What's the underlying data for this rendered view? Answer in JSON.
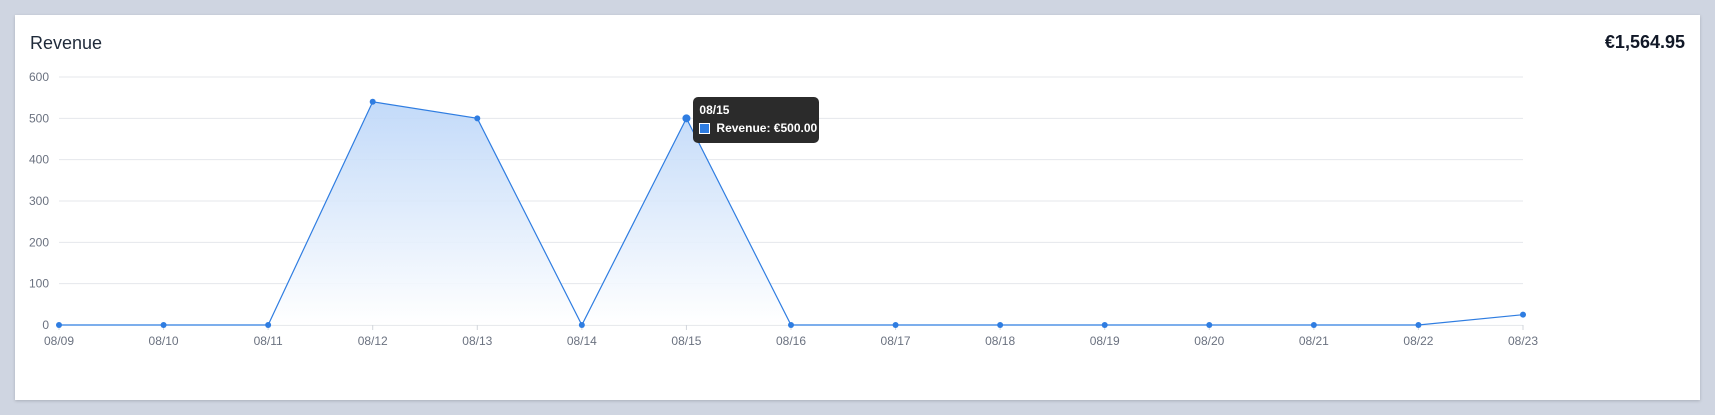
{
  "card": {
    "title": "Revenue",
    "total": "€1,564.95"
  },
  "chart_data": {
    "type": "area",
    "categories": [
      "08/09",
      "08/10",
      "08/11",
      "08/12",
      "08/13",
      "08/14",
      "08/15",
      "08/16",
      "08/17",
      "08/18",
      "08/19",
      "08/20",
      "08/21",
      "08/22",
      "08/23"
    ],
    "series": [
      {
        "name": "Revenue",
        "values": [
          0,
          0,
          0,
          540,
          500,
          0,
          500,
          0,
          0,
          0,
          0,
          0,
          0,
          0,
          25
        ]
      }
    ],
    "ylim": [
      0,
      600
    ],
    "yticks": [
      0,
      100,
      200,
      300,
      400,
      500,
      600
    ],
    "grid": true,
    "colors": {
      "line": "#2f7de1",
      "fill_top": "#bcd6f8",
      "fill_bottom": "#ffffff"
    }
  },
  "tooltip": {
    "title": "08/15",
    "series_label": "Revenue",
    "value": "€500.00",
    "point_index": 6
  }
}
